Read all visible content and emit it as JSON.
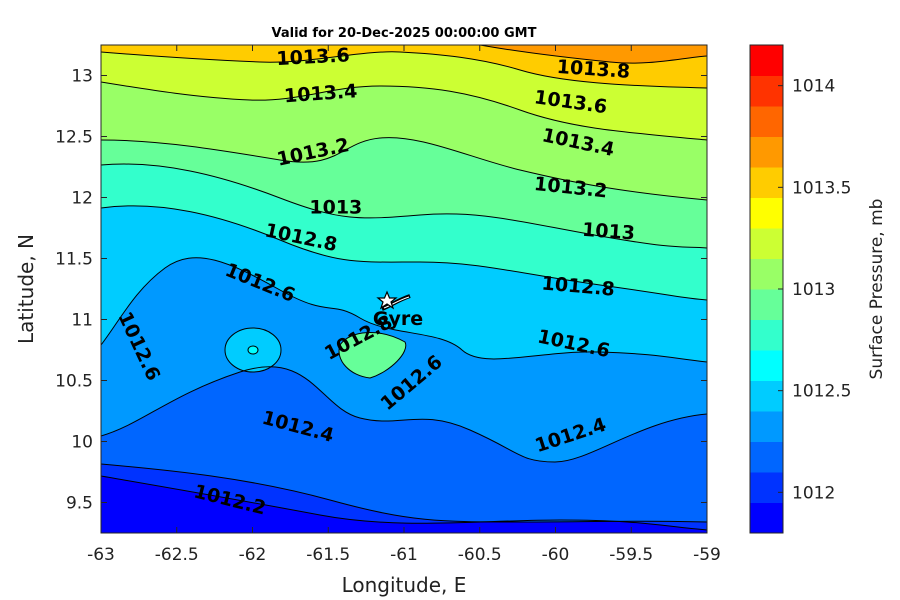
{
  "chart_data": {
    "type": "filled-contour",
    "title": "Valid for 20-Dec-2025 00:00:00 GMT",
    "xlabel": "Longitude, E",
    "ylabel": "Latitude, N",
    "xlim": [
      -63,
      -59
    ],
    "ylim": [
      9.25,
      13.25
    ],
    "xticks": [
      -63,
      -62.5,
      -62,
      -61.5,
      -61,
      -60.5,
      -60,
      -59.5,
      -59
    ],
    "xtick_labels": [
      "-63",
      "-62.5",
      "-62",
      "-61.5",
      "-61",
      "-60.5",
      "-60",
      "-59.5",
      "-59"
    ],
    "yticks": [
      9.5,
      10,
      10.5,
      11,
      11.5,
      12,
      12.5,
      13
    ],
    "ytick_labels": [
      "9.5",
      "10",
      "10.5",
      "11",
      "11.5",
      "12",
      "12.5",
      "13"
    ],
    "colorbar": {
      "label": "Surface Pressure, mb",
      "range": [
        1011.8,
        1014.2
      ],
      "ticks": [
        1012,
        1012.5,
        1013,
        1013.5,
        1014
      ],
      "tick_labels": [
        "1012",
        "1012.5",
        "1013",
        "1013.5",
        "1014"
      ],
      "levels": [
        1011.8,
        1011.9,
        1012.0,
        1012.2,
        1012.4,
        1012.5,
        1012.6,
        1012.8,
        1013.0,
        1013.2,
        1013.4,
        1013.6,
        1013.8,
        1014.0,
        1014.2
      ],
      "colors": [
        "#0000FF",
        "#0033FF",
        "#0066FF",
        "#0099FF",
        "#00CCFF",
        "#00FFFF",
        "#33FFCC",
        "#66FF99",
        "#99FF66",
        "#CCFF33",
        "#FFFF00",
        "#FFCC00",
        "#FF9900",
        "#FF6600",
        "#FF3300",
        "#FF0000"
      ]
    },
    "contour_labels": [
      {
        "text": "1013.6",
        "lon": -61.6,
        "lat": 13.15
      },
      {
        "text": "1013.8",
        "lon": -59.75,
        "lat": 13.05
      },
      {
        "text": "1013.4",
        "lon": -61.55,
        "lat": 12.85
      },
      {
        "text": "1013.6",
        "lon": -59.9,
        "lat": 12.78
      },
      {
        "text": "1013.4",
        "lon": -59.85,
        "lat": 12.45
      },
      {
        "text": "1013.2",
        "lon": -61.6,
        "lat": 12.37
      },
      {
        "text": "1013.2",
        "lon": -59.9,
        "lat": 12.08
      },
      {
        "text": "1013",
        "lon": -61.45,
        "lat": 11.92
      },
      {
        "text": "1013",
        "lon": -59.65,
        "lat": 11.72
      },
      {
        "text": "1012.8",
        "lon": -61.68,
        "lat": 11.67
      },
      {
        "text": "1012.8",
        "lon": -59.85,
        "lat": 11.27
      },
      {
        "text": "1012.6",
        "lon": -61.95,
        "lat": 11.3
      },
      {
        "text": "1012.6",
        "lon": -62.75,
        "lat": 10.78
      },
      {
        "text": "1012.8",
        "lon": -61.3,
        "lat": 10.85
      },
      {
        "text": "1012.6",
        "lon": -60.95,
        "lat": 10.48
      },
      {
        "text": "1012.6",
        "lon": -59.88,
        "lat": 10.8
      },
      {
        "text": "1012.4",
        "lon": -61.7,
        "lat": 10.12
      },
      {
        "text": "1012.4",
        "lon": -59.9,
        "lat": 10.05
      },
      {
        "text": "1012.2",
        "lon": -62.15,
        "lat": 9.52
      }
    ],
    "annotations": [
      {
        "text": "Gyre",
        "lon": -61.0,
        "lat": 11.0,
        "marker": "star"
      }
    ]
  }
}
